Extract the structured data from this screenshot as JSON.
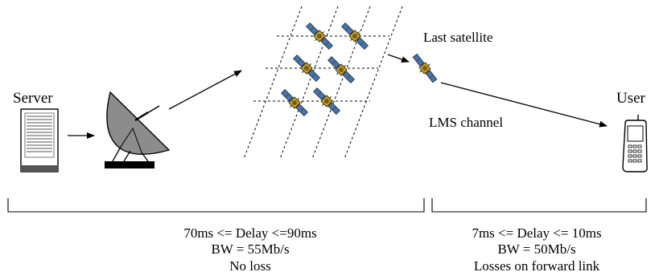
{
  "labels": {
    "server": "Server",
    "user": "User",
    "last_satellite": "Last satellite",
    "lms_channel": "LMS channel"
  },
  "segments": {
    "left": {
      "delay": "70ms <= Delay <=90ms",
      "bandwidth": "BW = 55Mb/s",
      "loss": "No loss"
    },
    "right": {
      "delay": "7ms <= Delay <= 10ms",
      "bandwidth": "BW = 50Mb/s",
      "loss": "Losses on forward link"
    }
  },
  "icons": {
    "server": "server-icon",
    "dish": "satellite-dish-icon",
    "constellation": "satellite-constellation",
    "satellite": "satellite-icon",
    "phone": "mobile-phone-icon"
  },
  "colors": {
    "dish_fill": "#8c8c8c",
    "panel_fill": "#4a73a6",
    "body_fill": "#c9a227"
  }
}
